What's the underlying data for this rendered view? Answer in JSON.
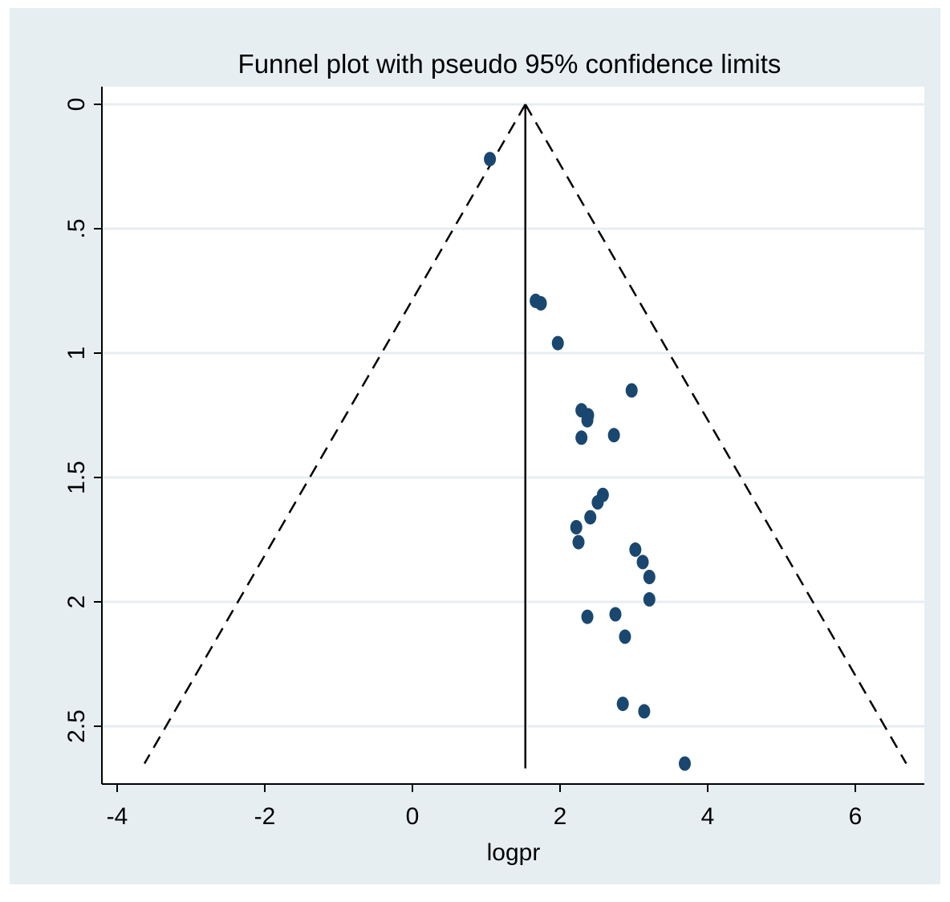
{
  "chart_data": {
    "type": "scatter",
    "title": "Funnel plot with pseudo 95% confidence limits",
    "xlabel": "logpr",
    "ylabel": "",
    "xlim": [
      -4.2,
      7.0
    ],
    "ylim": [
      0,
      2.73
    ],
    "y_reversed": true,
    "x_ticks": [
      "-4",
      "-2",
      "0",
      "2",
      "4",
      "6"
    ],
    "y_ticks": [
      "0",
      ".5",
      "1",
      "1.5",
      "2",
      "2.5"
    ],
    "grid": true,
    "pooled_estimate": 1.53,
    "funnel": {
      "apex": [
        1.53,
        0
      ],
      "base_left": [
        -3.63,
        2.65
      ],
      "base_right": [
        6.69,
        2.65
      ],
      "line_style": "dashed"
    },
    "points": [
      {
        "x": 1.05,
        "y": 0.22
      },
      {
        "x": 1.67,
        "y": 0.79
      },
      {
        "x": 1.74,
        "y": 0.8
      },
      {
        "x": 1.97,
        "y": 0.96
      },
      {
        "x": 2.97,
        "y": 1.15
      },
      {
        "x": 2.29,
        "y": 1.23
      },
      {
        "x": 2.38,
        "y": 1.25
      },
      {
        "x": 2.37,
        "y": 1.27
      },
      {
        "x": 2.29,
        "y": 1.34
      },
      {
        "x": 2.73,
        "y": 1.33
      },
      {
        "x": 2.58,
        "y": 1.57
      },
      {
        "x": 2.51,
        "y": 1.6
      },
      {
        "x": 2.41,
        "y": 1.66
      },
      {
        "x": 2.22,
        "y": 1.7
      },
      {
        "x": 2.25,
        "y": 1.76
      },
      {
        "x": 3.02,
        "y": 1.79
      },
      {
        "x": 3.12,
        "y": 1.84
      },
      {
        "x": 3.21,
        "y": 1.9
      },
      {
        "x": 3.21,
        "y": 1.99
      },
      {
        "x": 2.37,
        "y": 2.06
      },
      {
        "x": 2.75,
        "y": 2.05
      },
      {
        "x": 2.88,
        "y": 2.14
      },
      {
        "x": 2.85,
        "y": 2.41
      },
      {
        "x": 3.14,
        "y": 2.44
      },
      {
        "x": 3.69,
        "y": 2.65
      }
    ],
    "colors": {
      "background": "#e7eef2",
      "plot_area": "#ffffff",
      "gridline": "#e7eef2",
      "point": "#1a476f",
      "line": "#000000"
    }
  }
}
